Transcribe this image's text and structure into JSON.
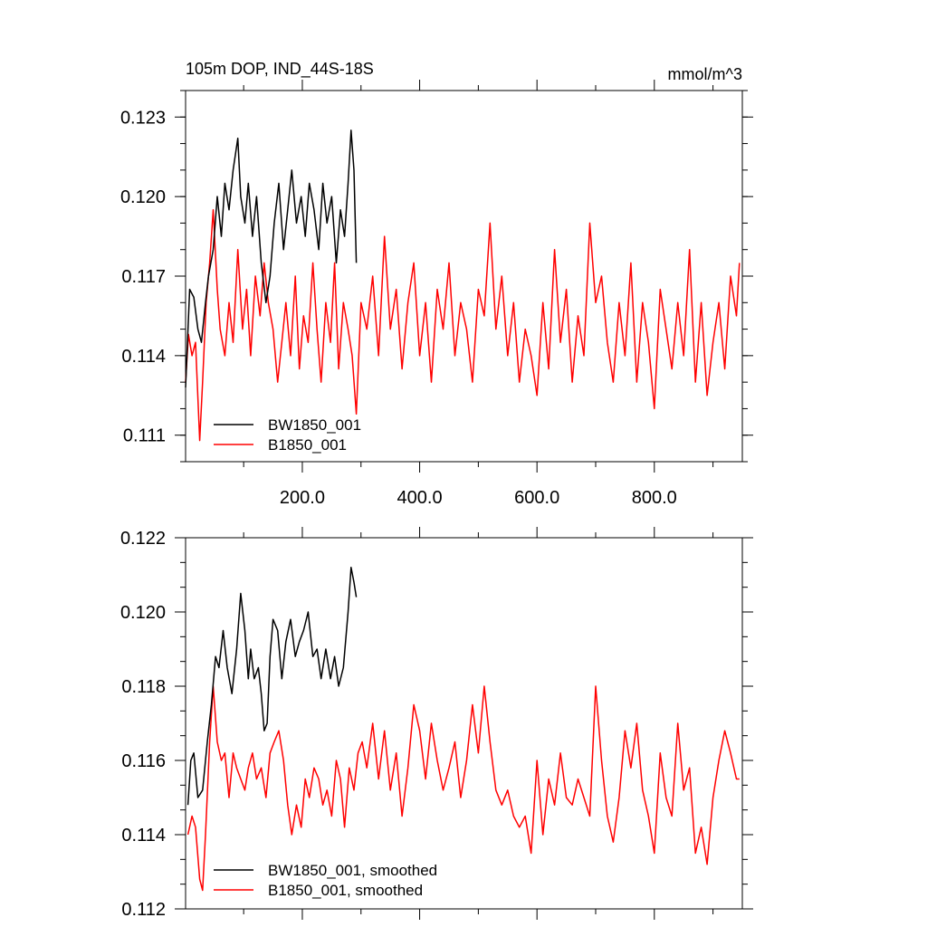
{
  "colors": {
    "bw": "#000000",
    "b": "#ff0000"
  },
  "chart_data": [
    {
      "type": "line",
      "title": "105m DOP, IND_44S-18S",
      "units": "mmol/m^3",
      "xlabel": "",
      "ylabel": "",
      "xlim": [
        1,
        950
      ],
      "ylim": [
        0.11,
        0.124
      ],
      "xticks": [
        200,
        400,
        600,
        800
      ],
      "xtick_labels": [
        "200.0",
        "400.0",
        "600.0",
        "800.0"
      ],
      "yticks": [
        0.111,
        0.114,
        0.117,
        0.12,
        0.123
      ],
      "ytick_labels": [
        "0.111",
        "0.114",
        "0.117",
        "0.120",
        "0.123"
      ],
      "grid": false,
      "legend_position": "bottom-left",
      "series": [
        {
          "name": "BW1850_001",
          "color": "#000000",
          "x": [
            1,
            8,
            15,
            22,
            28,
            35,
            40,
            48,
            55,
            62,
            68,
            75,
            82,
            90,
            95,
            102,
            108,
            115,
            122,
            130,
            138,
            145,
            152,
            160,
            168,
            175,
            182,
            190,
            198,
            205,
            212,
            220,
            228,
            235,
            242,
            250,
            258,
            265,
            272,
            278,
            283,
            288,
            292
          ],
          "values": [
            0.1128,
            0.1165,
            0.1162,
            0.115,
            0.1145,
            0.116,
            0.117,
            0.118,
            0.12,
            0.1185,
            0.1205,
            0.1195,
            0.121,
            0.1222,
            0.12,
            0.119,
            0.1205,
            0.1185,
            0.12,
            0.1175,
            0.116,
            0.117,
            0.119,
            0.1205,
            0.118,
            0.1195,
            0.121,
            0.119,
            0.12,
            0.1185,
            0.1205,
            0.1195,
            0.118,
            0.1205,
            0.119,
            0.12,
            0.1175,
            0.1195,
            0.1185,
            0.1205,
            0.1225,
            0.121,
            0.1175
          ]
        },
        {
          "name": "B1850_001",
          "color": "#ff0000",
          "x": [
            1,
            6,
            12,
            18,
            25,
            30,
            36,
            42,
            48,
            55,
            60,
            68,
            75,
            82,
            90,
            98,
            105,
            112,
            120,
            128,
            135,
            142,
            150,
            158,
            165,
            172,
            180,
            188,
            195,
            202,
            210,
            218,
            225,
            232,
            240,
            248,
            255,
            262,
            270,
            278,
            285,
            292,
            300,
            310,
            320,
            330,
            340,
            350,
            360,
            370,
            380,
            390,
            400,
            410,
            420,
            430,
            440,
            450,
            460,
            470,
            480,
            490,
            500,
            510,
            520,
            530,
            540,
            550,
            560,
            570,
            580,
            590,
            600,
            610,
            620,
            630,
            640,
            650,
            660,
            670,
            680,
            690,
            700,
            710,
            720,
            730,
            740,
            750,
            760,
            770,
            780,
            790,
            800,
            810,
            820,
            830,
            840,
            850,
            860,
            870,
            880,
            890,
            900,
            910,
            920,
            930,
            940,
            945
          ],
          "values": [
            0.113,
            0.1148,
            0.114,
            0.1145,
            0.1108,
            0.113,
            0.116,
            0.1175,
            0.1195,
            0.1165,
            0.115,
            0.114,
            0.116,
            0.1145,
            0.118,
            0.115,
            0.1165,
            0.114,
            0.117,
            0.1155,
            0.1175,
            0.116,
            0.115,
            0.113,
            0.1145,
            0.116,
            0.114,
            0.117,
            0.1135,
            0.1155,
            0.1145,
            0.1175,
            0.115,
            0.113,
            0.116,
            0.1145,
            0.1175,
            0.1135,
            0.116,
            0.115,
            0.114,
            0.1118,
            0.116,
            0.115,
            0.117,
            0.114,
            0.1185,
            0.115,
            0.1165,
            0.1135,
            0.116,
            0.1175,
            0.114,
            0.116,
            0.113,
            0.1165,
            0.115,
            0.1175,
            0.114,
            0.116,
            0.115,
            0.113,
            0.1165,
            0.1155,
            0.119,
            0.115,
            0.117,
            0.114,
            0.116,
            0.113,
            0.115,
            0.114,
            0.1125,
            0.116,
            0.1135,
            0.118,
            0.1145,
            0.1165,
            0.113,
            0.1155,
            0.114,
            0.119,
            0.116,
            0.117,
            0.1145,
            0.113,
            0.116,
            0.114,
            0.1175,
            0.113,
            0.116,
            0.1145,
            0.112,
            0.1165,
            0.115,
            0.1135,
            0.116,
            0.114,
            0.118,
            0.113,
            0.116,
            0.1125,
            0.1145,
            0.116,
            0.1135,
            0.117,
            0.1155,
            0.1175
          ]
        }
      ],
      "legend": [
        {
          "label": "BW1850_001",
          "color": "#000000"
        },
        {
          "label": "B1850_001",
          "color": "#ff0000"
        }
      ]
    },
    {
      "type": "line",
      "title": "",
      "xlabel": "",
      "ylabel": "",
      "xlim": [
        1,
        950
      ],
      "ylim": [
        0.112,
        0.122
      ],
      "xticks": [
        200,
        400,
        600,
        800
      ],
      "yticks": [
        0.112,
        0.114,
        0.116,
        0.118,
        0.12,
        0.122
      ],
      "ytick_labels": [
        "0.112",
        "0.114",
        "0.116",
        "0.118",
        "0.120",
        "0.122"
      ],
      "grid": false,
      "legend_position": "bottom-left",
      "series": [
        {
          "name": "BW1850_001, smoothed",
          "color": "#000000",
          "x": [
            5,
            10,
            15,
            22,
            30,
            38,
            45,
            52,
            58,
            65,
            72,
            80,
            88,
            95,
            102,
            108,
            112,
            118,
            125,
            130,
            135,
            140,
            145,
            150,
            158,
            165,
            172,
            180,
            188,
            195,
            202,
            210,
            218,
            225,
            232,
            240,
            248,
            255,
            262,
            270,
            278,
            283,
            288,
            292
          ],
          "values": [
            0.1148,
            0.116,
            0.1162,
            0.115,
            0.1152,
            0.1165,
            0.1175,
            0.1188,
            0.1185,
            0.1195,
            0.1185,
            0.1178,
            0.119,
            0.1205,
            0.1195,
            0.1182,
            0.119,
            0.1182,
            0.1185,
            0.1178,
            0.1168,
            0.117,
            0.1188,
            0.1198,
            0.1195,
            0.1182,
            0.1192,
            0.1198,
            0.1188,
            0.1192,
            0.1195,
            0.12,
            0.1188,
            0.119,
            0.1182,
            0.119,
            0.1182,
            0.1188,
            0.118,
            0.1185,
            0.12,
            0.1212,
            0.1208,
            0.1204
          ]
        },
        {
          "name": "B1850_001, smoothed",
          "color": "#ff0000",
          "x": [
            5,
            12,
            18,
            25,
            30,
            35,
            42,
            48,
            55,
            62,
            68,
            75,
            82,
            88,
            95,
            102,
            108,
            115,
            122,
            130,
            138,
            145,
            152,
            160,
            168,
            175,
            182,
            190,
            198,
            205,
            212,
            220,
            228,
            235,
            242,
            250,
            258,
            265,
            272,
            280,
            288,
            295,
            302,
            310,
            320,
            330,
            340,
            350,
            360,
            370,
            380,
            390,
            400,
            410,
            420,
            430,
            440,
            450,
            460,
            470,
            480,
            490,
            500,
            510,
            520,
            530,
            540,
            550,
            560,
            570,
            580,
            590,
            600,
            610,
            620,
            630,
            640,
            650,
            660,
            670,
            680,
            690,
            700,
            710,
            720,
            730,
            740,
            750,
            760,
            770,
            780,
            790,
            800,
            810,
            820,
            830,
            840,
            850,
            860,
            870,
            880,
            890,
            900,
            910,
            920,
            930,
            940,
            945
          ],
          "values": [
            0.114,
            0.1145,
            0.1142,
            0.1128,
            0.1125,
            0.114,
            0.1165,
            0.118,
            0.1165,
            0.116,
            0.1162,
            0.115,
            0.1162,
            0.1158,
            0.1155,
            0.1152,
            0.1158,
            0.1162,
            0.1155,
            0.1158,
            0.115,
            0.1162,
            0.1165,
            0.1168,
            0.116,
            0.1148,
            0.114,
            0.1148,
            0.1142,
            0.1155,
            0.115,
            0.1158,
            0.1155,
            0.1148,
            0.1152,
            0.1145,
            0.116,
            0.1155,
            0.1142,
            0.1158,
            0.1152,
            0.1162,
            0.1165,
            0.1158,
            0.117,
            0.1155,
            0.1168,
            0.1152,
            0.1162,
            0.1145,
            0.1158,
            0.1175,
            0.1168,
            0.1155,
            0.117,
            0.116,
            0.1152,
            0.1158,
            0.1165,
            0.115,
            0.116,
            0.1175,
            0.1162,
            0.118,
            0.1165,
            0.1152,
            0.1148,
            0.1152,
            0.1145,
            0.1142,
            0.1145,
            0.1135,
            0.116,
            0.114,
            0.1155,
            0.1148,
            0.1162,
            0.115,
            0.1148,
            0.1155,
            0.115,
            0.1145,
            0.118,
            0.116,
            0.1145,
            0.1138,
            0.115,
            0.1168,
            0.1158,
            0.117,
            0.1152,
            0.1145,
            0.1135,
            0.1162,
            0.115,
            0.1145,
            0.117,
            0.1152,
            0.1158,
            0.1135,
            0.1142,
            0.1132,
            0.115,
            0.116,
            0.1168,
            0.1162,
            0.1155,
            0.1155
          ]
        }
      ],
      "legend": [
        {
          "label": "BW1850_001, smoothed",
          "color": "#000000"
        },
        {
          "label": "B1850_001, smoothed",
          "color": "#ff0000"
        }
      ]
    }
  ]
}
